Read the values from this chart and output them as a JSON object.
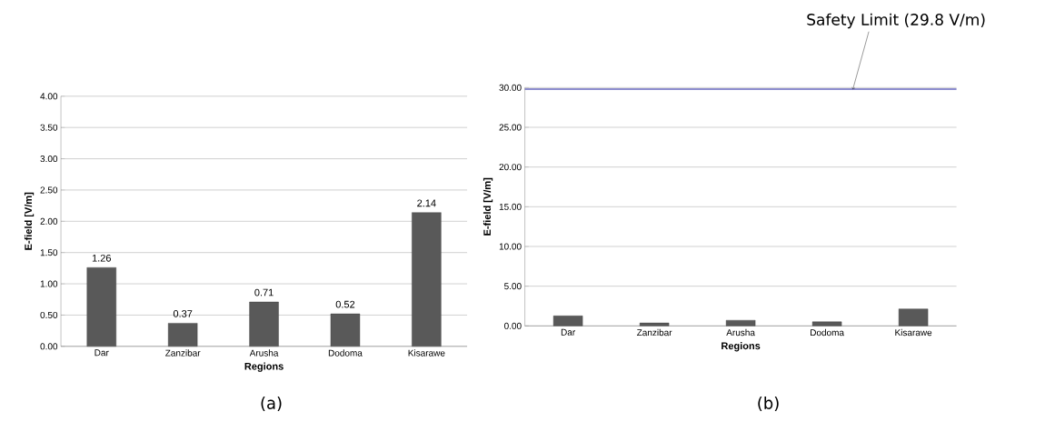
{
  "chart_data": [
    {
      "type": "bar",
      "xlabel": "Regions",
      "ylabel": "E-field [V/m]",
      "categories": [
        "Dar",
        "Zanzibar",
        "Arusha",
        "Dodoma",
        "Kisarawe"
      ],
      "values": [
        1.26,
        0.37,
        0.71,
        0.52,
        2.14
      ],
      "color": "#595959",
      "data_labels": true,
      "ylim": [
        0,
        4
      ],
      "yticks": [
        {
          "value": 0,
          "label": "0.00"
        },
        {
          "value": 0.5,
          "label": "0.50"
        },
        {
          "value": 1,
          "label": "1.00"
        },
        {
          "value": 1.5,
          "label": "1.50"
        },
        {
          "value": 2,
          "label": "2.00"
        },
        {
          "value": 2.5,
          "label": "2.50"
        },
        {
          "value": 3,
          "label": "3.00"
        },
        {
          "value": 3.5,
          "label": "3.50"
        },
        {
          "value": 4,
          "label": "4.00"
        }
      ],
      "grid": "y",
      "annotations": [
        "(a)"
      ]
    },
    {
      "type": "bar",
      "xlabel": "Regions",
      "ylabel": "E-field [V/m]",
      "categories": [
        "Dar",
        "Zanzibar",
        "Arusha",
        "Dodoma",
        "Kisarawe"
      ],
      "values": [
        1.26,
        0.37,
        0.71,
        0.52,
        2.14
      ],
      "color": "#595959",
      "ylim": [
        0,
        30
      ],
      "yticks": [
        {
          "value": 0,
          "label": "0.00"
        },
        {
          "value": 5,
          "label": "5.00"
        },
        {
          "value": 10,
          "label": "10.00"
        },
        {
          "value": 15,
          "label": "15.00"
        },
        {
          "value": 20,
          "label": "20.00"
        },
        {
          "value": 25,
          "label": "25.00"
        },
        {
          "value": 30,
          "label": "30.00"
        }
      ],
      "grid": "y",
      "ref_lines": [
        {
          "axis": "y",
          "value": 29.8,
          "label": "Safety Limit (29.8 V/m)",
          "color": "#1f1f9f"
        }
      ],
      "annotations": [
        "(b)"
      ]
    }
  ]
}
